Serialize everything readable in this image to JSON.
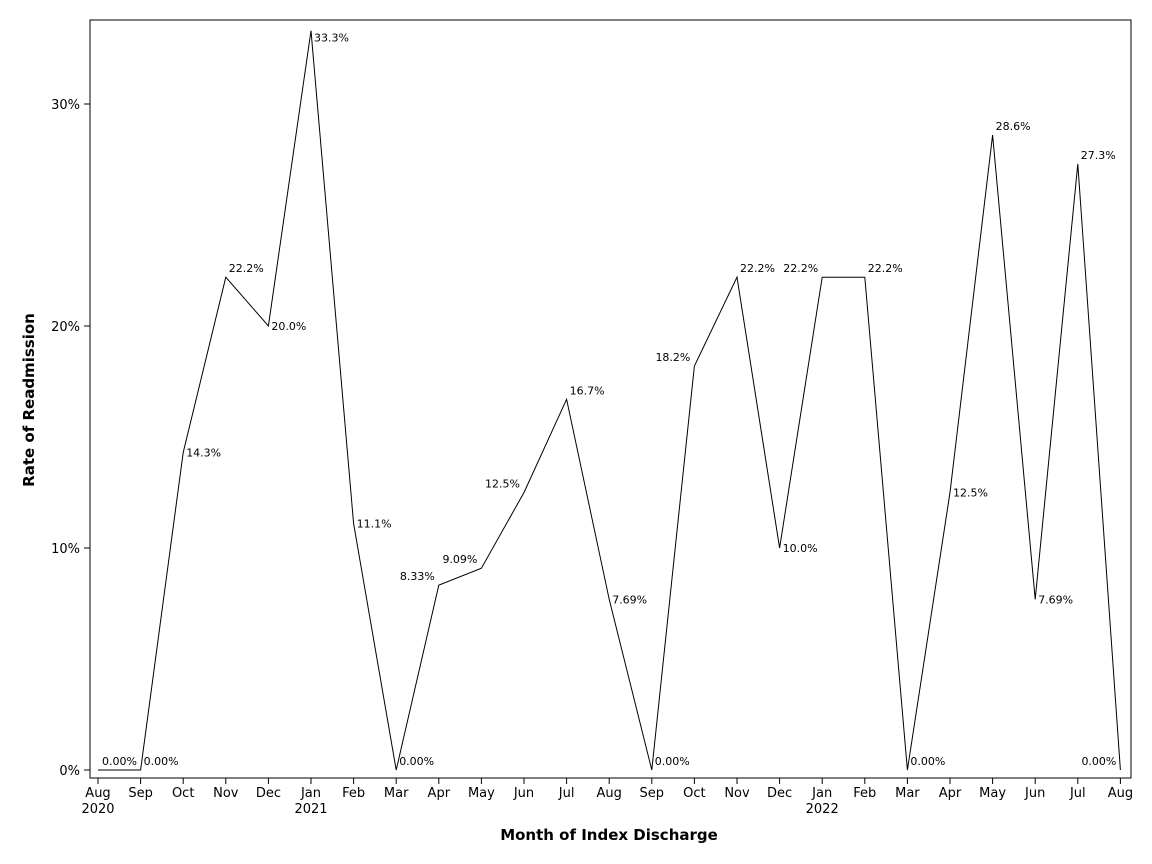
{
  "chart_data": {
    "type": "line",
    "xlabel": "Month of Index Discharge",
    "ylabel": "Rate of Readmission",
    "ylim": [
      0,
      33.3
    ],
    "y_ticks": [
      0,
      10,
      20,
      30
    ],
    "y_tick_labels": [
      "0%",
      "10%",
      "20%",
      "30%"
    ],
    "grid": false,
    "x": [
      "Aug 2020",
      "Sep 2020",
      "Oct 2020",
      "Nov 2020",
      "Dec 2020",
      "Jan 2021",
      "Feb 2021",
      "Mar 2021",
      "Apr 2021",
      "May 2021",
      "Jun 2021",
      "Jul 2021",
      "Aug 2021",
      "Sep 2021",
      "Oct 2021",
      "Nov 2021",
      "Dec 2021",
      "Jan 2022",
      "Feb 2022",
      "Mar 2022",
      "Apr 2022",
      "May 2022",
      "Jun 2022",
      "Jul 2022",
      "Aug 2022"
    ],
    "month_labels": [
      "Aug",
      "Sep",
      "Oct",
      "Nov",
      "Dec",
      "Jan",
      "Feb",
      "Mar",
      "Apr",
      "May",
      "Jun",
      "Jul",
      "Aug",
      "Sep",
      "Oct",
      "Nov",
      "Dec",
      "Jan",
      "Feb",
      "Mar",
      "Apr",
      "May",
      "Jun",
      "Jul",
      "Aug"
    ],
    "year_labels": [
      {
        "index": 0,
        "label": "2020"
      },
      {
        "index": 5,
        "label": "2021"
      },
      {
        "index": 17,
        "label": "2022"
      }
    ],
    "values": [
      0,
      0,
      14.3,
      22.2,
      20.0,
      33.3,
      11.1,
      0,
      8.33,
      9.09,
      12.5,
      16.7,
      7.69,
      0,
      18.2,
      22.2,
      10.0,
      22.2,
      22.2,
      0,
      12.5,
      28.6,
      7.69,
      27.3,
      0
    ],
    "data_labels": [
      "0.00%",
      "0.00%",
      "14.3%",
      "22.2%",
      "20.0%",
      "33.3%",
      "11.1%",
      "0.00%",
      "8.33%",
      "9.09%",
      "12.5%",
      "16.7%",
      "7.69%",
      "0.00%",
      "18.2%",
      "22.2%",
      "10.0%",
      "22.2%",
      "22.2%",
      "0.00%",
      "12.5%",
      "28.6%",
      "7.69%",
      "27.3%",
      "0.00%"
    ]
  }
}
